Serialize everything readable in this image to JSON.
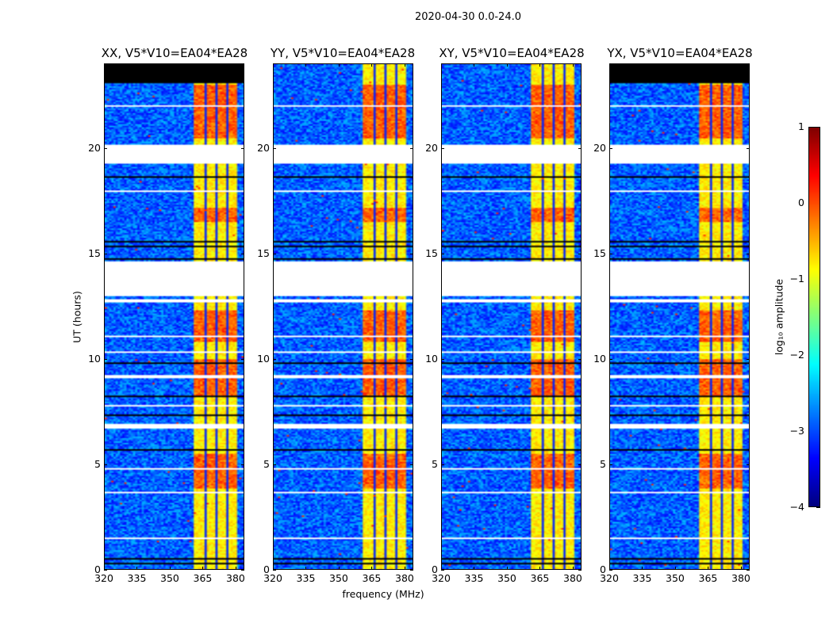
{
  "chart_data": {
    "type": "heatmap",
    "title": "2020-04-30 0.0-24.0",
    "panels": [
      {
        "title": "XX, V5*V10=EA04*EA28",
        "black_top": true
      },
      {
        "title": "YY, V5*V10=EA04*EA28",
        "black_top": false
      },
      {
        "title": "XY, V5*V10=EA04*EA28",
        "black_top": false
      },
      {
        "title": "YX, V5*V10=EA04*EA28",
        "black_top": true
      }
    ],
    "xlabel": "frequency (MHz)",
    "ylabel": "UT (hours)",
    "xlim": [
      320,
      384
    ],
    "ylim": [
      0,
      24
    ],
    "xticks": [
      "320",
      "335",
      "350",
      "365",
      "380"
    ],
    "xtick_values": [
      320,
      335,
      350,
      365,
      380
    ],
    "yticks": [
      "0",
      "5",
      "10",
      "15",
      "20"
    ],
    "ytick_values": [
      0,
      5,
      10,
      15,
      20
    ],
    "colorbar": {
      "label": "log₁₀ amplitude",
      "range": [
        -4,
        1
      ],
      "ticks": [
        "1",
        "0",
        "−1",
        "−2",
        "−3",
        "−4"
      ],
      "tick_values": [
        1,
        0,
        -1,
        -2,
        -3,
        -4
      ],
      "colormap": "jet"
    },
    "features": {
      "background_log_amp": -2.9,
      "rfi_band_mhz": [
        361,
        381
      ],
      "rfi_band_log_amp": -0.8,
      "channel_gaps_mhz": [
        366.5,
        371.5,
        376.5
      ],
      "flagged_white_hours": [
        [
          19.3,
          20.2
        ],
        [
          13.0,
          14.6
        ],
        [
          6.7,
          6.9
        ],
        [
          1.4,
          1.5
        ],
        [
          3.6,
          3.7
        ],
        [
          4.7,
          4.8
        ],
        [
          9.05,
          9.2
        ],
        [
          7.7,
          7.8
        ],
        [
          12.7,
          12.8
        ],
        [
          11.0,
          11.08
        ],
        [
          17.9,
          18.0
        ],
        [
          22.0,
          22.06
        ],
        [
          10.3,
          10.36
        ]
      ],
      "flagged_black_hours": [
        [
          0.45,
          0.5
        ],
        [
          0.25,
          0.3
        ],
        [
          5.65,
          5.72
        ],
        [
          7.3,
          7.35
        ],
        [
          8.2,
          8.25
        ],
        [
          9.75,
          9.8
        ],
        [
          12.95,
          13.0
        ],
        [
          15.55,
          15.6
        ],
        [
          15.3,
          15.35
        ],
        [
          18.6,
          18.65
        ],
        [
          18.2,
          18.25
        ],
        [
          14.7,
          14.75
        ]
      ],
      "black_top_hours": [
        23.1,
        24
      ],
      "strong_rfi_hours": [
        [
          3.8,
          5.5
        ],
        [
          8.2,
          10.0
        ],
        [
          10.8,
          12.3
        ],
        [
          16.5,
          17.2
        ],
        [
          20.5,
          23.0
        ]
      ]
    }
  }
}
